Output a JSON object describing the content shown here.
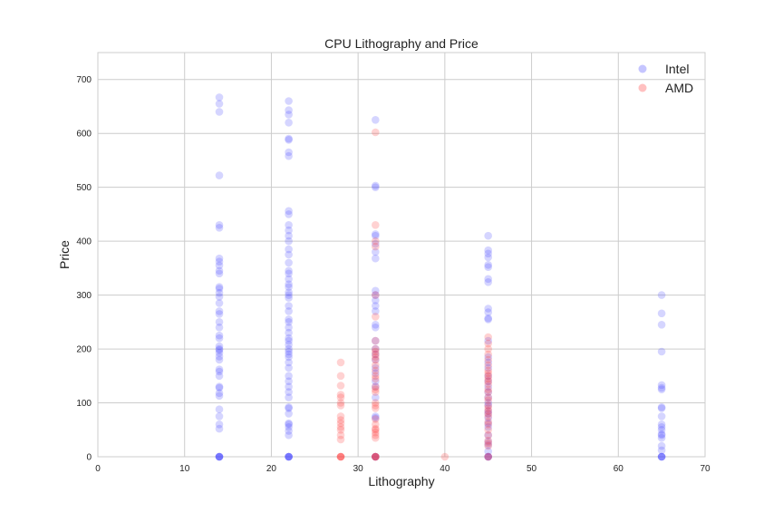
{
  "chart_data": {
    "type": "scatter",
    "title": "CPU Lithography and Price",
    "xlabel": "Lithography",
    "ylabel": "Price",
    "xlim": [
      0,
      70
    ],
    "ylim": [
      0,
      750
    ],
    "xticks": [
      0,
      10,
      20,
      30,
      40,
      50,
      60,
      70
    ],
    "yticks": [
      0,
      100,
      200,
      300,
      400,
      500,
      600,
      700
    ],
    "grid": true,
    "legend_position": "top-right",
    "series": [
      {
        "name": "Intel",
        "color": "#4040ff",
        "opacity": 0.22,
        "points": [
          [
            14,
            0
          ],
          [
            14,
            0
          ],
          [
            14,
            0
          ],
          [
            14,
            0
          ],
          [
            14,
            0
          ],
          [
            14,
            52
          ],
          [
            14,
            60
          ],
          [
            14,
            75
          ],
          [
            14,
            88
          ],
          [
            14,
            113
          ],
          [
            14,
            118
          ],
          [
            14,
            128
          ],
          [
            14,
            130
          ],
          [
            14,
            150
          ],
          [
            14,
            158
          ],
          [
            14,
            162
          ],
          [
            14,
            180
          ],
          [
            14,
            186
          ],
          [
            14,
            193
          ],
          [
            14,
            198
          ],
          [
            14,
            200
          ],
          [
            14,
            205
          ],
          [
            14,
            220
          ],
          [
            14,
            225
          ],
          [
            14,
            240
          ],
          [
            14,
            250
          ],
          [
            14,
            265
          ],
          [
            14,
            270
          ],
          [
            14,
            285
          ],
          [
            14,
            297
          ],
          [
            14,
            304
          ],
          [
            14,
            312
          ],
          [
            14,
            315
          ],
          [
            14,
            340
          ],
          [
            14,
            345
          ],
          [
            14,
            355
          ],
          [
            14,
            362
          ],
          [
            14,
            368
          ],
          [
            14,
            425
          ],
          [
            14,
            430
          ],
          [
            14,
            522
          ],
          [
            14,
            640
          ],
          [
            14,
            655
          ],
          [
            14,
            667
          ],
          [
            22,
            0
          ],
          [
            22,
            0
          ],
          [
            22,
            0
          ],
          [
            22,
            0
          ],
          [
            22,
            0
          ],
          [
            22,
            40
          ],
          [
            22,
            48
          ],
          [
            22,
            55
          ],
          [
            22,
            60
          ],
          [
            22,
            62
          ],
          [
            22,
            80
          ],
          [
            22,
            90
          ],
          [
            22,
            92
          ],
          [
            22,
            110
          ],
          [
            22,
            120
          ],
          [
            22,
            130
          ],
          [
            22,
            140
          ],
          [
            22,
            150
          ],
          [
            22,
            165
          ],
          [
            22,
            175
          ],
          [
            22,
            185
          ],
          [
            22,
            190
          ],
          [
            22,
            195
          ],
          [
            22,
            200
          ],
          [
            22,
            208
          ],
          [
            22,
            215
          ],
          [
            22,
            220
          ],
          [
            22,
            230
          ],
          [
            22,
            240
          ],
          [
            22,
            250
          ],
          [
            22,
            255
          ],
          [
            22,
            270
          ],
          [
            22,
            280
          ],
          [
            22,
            295
          ],
          [
            22,
            300
          ],
          [
            22,
            305
          ],
          [
            22,
            315
          ],
          [
            22,
            320
          ],
          [
            22,
            330
          ],
          [
            22,
            340
          ],
          [
            22,
            345
          ],
          [
            22,
            360
          ],
          [
            22,
            375
          ],
          [
            22,
            385
          ],
          [
            22,
            400
          ],
          [
            22,
            410
          ],
          [
            22,
            420
          ],
          [
            22,
            430
          ],
          [
            22,
            450
          ],
          [
            22,
            456
          ],
          [
            22,
            558
          ],
          [
            22,
            565
          ],
          [
            22,
            588
          ],
          [
            22,
            590
          ],
          [
            22,
            620
          ],
          [
            22,
            635
          ],
          [
            22,
            643
          ],
          [
            22,
            660
          ],
          [
            32,
            0
          ],
          [
            32,
            0
          ],
          [
            32,
            0
          ],
          [
            32,
            72
          ],
          [
            32,
            75
          ],
          [
            32,
            110
          ],
          [
            32,
            130
          ],
          [
            32,
            140
          ],
          [
            32,
            155
          ],
          [
            32,
            165
          ],
          [
            32,
            180
          ],
          [
            32,
            190
          ],
          [
            32,
            200
          ],
          [
            32,
            215
          ],
          [
            32,
            240
          ],
          [
            32,
            245
          ],
          [
            32,
            270
          ],
          [
            32,
            280
          ],
          [
            32,
            290
          ],
          [
            32,
            300
          ],
          [
            32,
            308
          ],
          [
            32,
            368
          ],
          [
            32,
            380
          ],
          [
            32,
            395
          ],
          [
            32,
            410
          ],
          [
            32,
            413
          ],
          [
            32,
            500
          ],
          [
            32,
            503
          ],
          [
            32,
            625
          ],
          [
            45,
            0
          ],
          [
            45,
            0
          ],
          [
            45,
            0
          ],
          [
            45,
            10
          ],
          [
            45,
            22
          ],
          [
            45,
            28
          ],
          [
            45,
            40
          ],
          [
            45,
            55
          ],
          [
            45,
            62
          ],
          [
            45,
            72
          ],
          [
            45,
            80
          ],
          [
            45,
            85
          ],
          [
            45,
            95
          ],
          [
            45,
            100
          ],
          [
            45,
            110
          ],
          [
            45,
            120
          ],
          [
            45,
            130
          ],
          [
            45,
            140
          ],
          [
            45,
            150
          ],
          [
            45,
            165
          ],
          [
            45,
            175
          ],
          [
            45,
            185
          ],
          [
            45,
            215
          ],
          [
            45,
            255
          ],
          [
            45,
            257
          ],
          [
            45,
            268
          ],
          [
            45,
            275
          ],
          [
            45,
            324
          ],
          [
            45,
            330
          ],
          [
            45,
            352
          ],
          [
            45,
            356
          ],
          [
            45,
            370
          ],
          [
            45,
            377
          ],
          [
            45,
            383
          ],
          [
            45,
            410
          ],
          [
            65,
            0
          ],
          [
            65,
            0
          ],
          [
            65,
            0
          ],
          [
            65,
            0
          ],
          [
            65,
            12
          ],
          [
            65,
            20
          ],
          [
            65,
            35
          ],
          [
            65,
            40
          ],
          [
            65,
            42
          ],
          [
            65,
            50
          ],
          [
            65,
            55
          ],
          [
            65,
            60
          ],
          [
            65,
            75
          ],
          [
            65,
            90
          ],
          [
            65,
            92
          ],
          [
            65,
            125
          ],
          [
            65,
            128
          ],
          [
            65,
            133
          ],
          [
            65,
            195
          ],
          [
            65,
            245
          ],
          [
            65,
            266
          ],
          [
            65,
            300
          ]
        ]
      },
      {
        "name": "AMD",
        "color": "#ff3030",
        "opacity": 0.22,
        "points": [
          [
            28,
            0
          ],
          [
            28,
            0
          ],
          [
            28,
            0
          ],
          [
            28,
            0
          ],
          [
            28,
            32
          ],
          [
            28,
            40
          ],
          [
            28,
            50
          ],
          [
            28,
            55
          ],
          [
            28,
            62
          ],
          [
            28,
            68
          ],
          [
            28,
            75
          ],
          [
            28,
            95
          ],
          [
            28,
            100
          ],
          [
            28,
            110
          ],
          [
            28,
            115
          ],
          [
            28,
            132
          ],
          [
            28,
            150
          ],
          [
            28,
            175
          ],
          [
            32,
            0
          ],
          [
            32,
            0
          ],
          [
            32,
            0
          ],
          [
            32,
            0
          ],
          [
            32,
            35
          ],
          [
            32,
            40
          ],
          [
            32,
            45
          ],
          [
            32,
            50
          ],
          [
            32,
            52
          ],
          [
            32,
            60
          ],
          [
            32,
            70
          ],
          [
            32,
            90
          ],
          [
            32,
            95
          ],
          [
            32,
            100
          ],
          [
            32,
            120
          ],
          [
            32,
            125
          ],
          [
            32,
            130
          ],
          [
            32,
            145
          ],
          [
            32,
            150
          ],
          [
            32,
            160
          ],
          [
            32,
            170
          ],
          [
            32,
            180
          ],
          [
            32,
            185
          ],
          [
            32,
            190
          ],
          [
            32,
            195
          ],
          [
            32,
            200
          ],
          [
            32,
            215
          ],
          [
            32,
            260
          ],
          [
            32,
            300
          ],
          [
            32,
            390
          ],
          [
            32,
            400
          ],
          [
            32,
            430
          ],
          [
            32,
            602
          ],
          [
            40,
            0
          ],
          [
            45,
            0
          ],
          [
            45,
            0
          ],
          [
            45,
            20
          ],
          [
            45,
            25
          ],
          [
            45,
            30
          ],
          [
            45,
            40
          ],
          [
            45,
            50
          ],
          [
            45,
            60
          ],
          [
            45,
            65
          ],
          [
            45,
            75
          ],
          [
            45,
            80
          ],
          [
            45,
            85
          ],
          [
            45,
            90
          ],
          [
            45,
            95
          ],
          [
            45,
            105
          ],
          [
            45,
            110
          ],
          [
            45,
            120
          ],
          [
            45,
            125
          ],
          [
            45,
            135
          ],
          [
            45,
            140
          ],
          [
            45,
            145
          ],
          [
            45,
            150
          ],
          [
            45,
            155
          ],
          [
            45,
            160
          ],
          [
            45,
            170
          ],
          [
            45,
            180
          ],
          [
            45,
            190
          ],
          [
            45,
            200
          ],
          [
            45,
            210
          ],
          [
            45,
            222
          ]
        ]
      }
    ]
  }
}
